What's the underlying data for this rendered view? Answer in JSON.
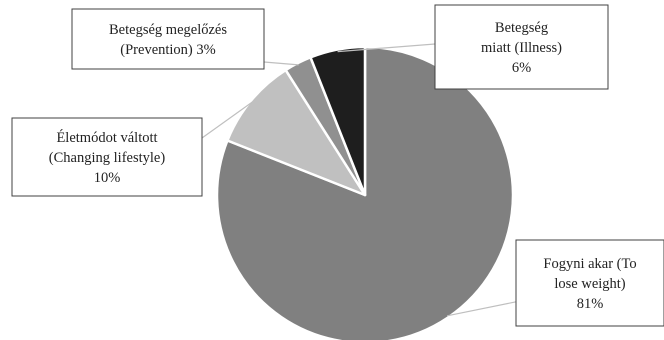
{
  "chart_data": {
    "type": "pie",
    "title": "",
    "slices": [
      {
        "label_lines": [
          "Fogyni akar (To",
          "lose weight)",
          "81%"
        ],
        "value": 81,
        "color": "#808080"
      },
      {
        "label_lines": [
          "Életmódot váltott",
          "(Changing lifestyle)",
          "10%"
        ],
        "value": 10,
        "color": "#c0c0c0"
      },
      {
        "label_lines": [
          "Betegség megelőzés",
          "(Prevention) 3%"
        ],
        "value": 3,
        "color": "#909090"
      },
      {
        "label_lines": [
          "Betegség",
          "miatt (Illness)",
          "6%"
        ],
        "value": 6,
        "color": "#1e1e1e"
      }
    ],
    "start_angle_deg": 0,
    "direction": "clockwise",
    "legend": "none"
  }
}
